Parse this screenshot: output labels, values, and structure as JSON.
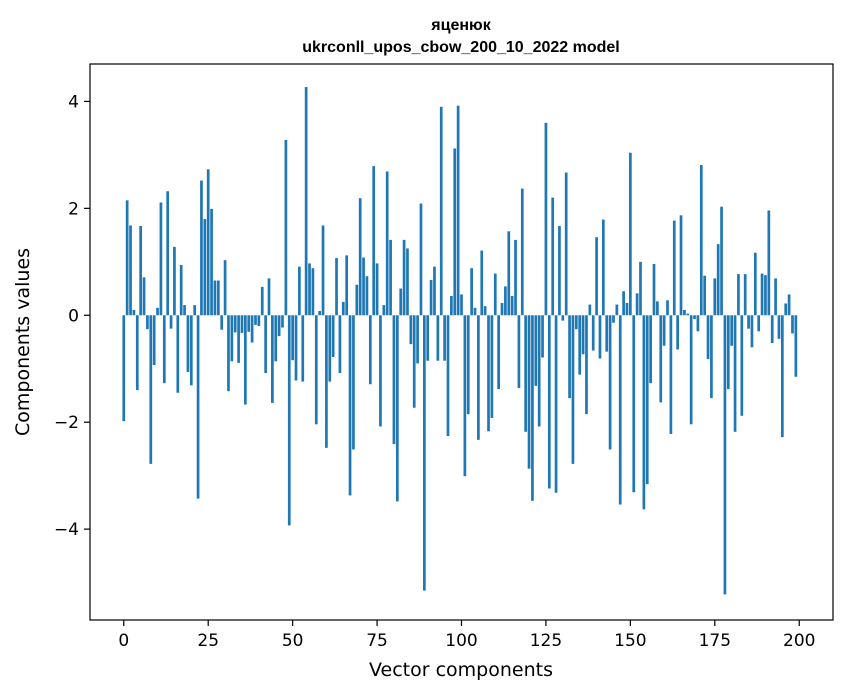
{
  "chart_data": {
    "type": "bar",
    "title": "яценюк",
    "subtitle": "ukrconll_upos_cbow_200_10_2022 model",
    "xlabel": "Vector components",
    "ylabel": "Components values",
    "xlim": [
      -10,
      210
    ],
    "ylim": [
      -5.7,
      4.7
    ],
    "xticks": [
      0,
      25,
      50,
      75,
      100,
      125,
      150,
      175,
      200
    ],
    "xtick_labels": [
      "0",
      "25",
      "50",
      "75",
      "100",
      "125",
      "150",
      "175",
      "200"
    ],
    "yticks": [
      -4,
      -2,
      0,
      2,
      4
    ],
    "ytick_labels": [
      "−4",
      "−2",
      "0",
      "2",
      "4"
    ],
    "bar_color": "#1f77b4",
    "grid": false,
    "x": [
      0,
      1,
      2,
      3,
      4,
      5,
      6,
      7,
      8,
      9,
      10,
      11,
      12,
      13,
      14,
      15,
      16,
      17,
      18,
      19,
      20,
      21,
      22,
      23,
      24,
      25,
      26,
      27,
      28,
      29,
      30,
      31,
      32,
      33,
      34,
      35,
      36,
      37,
      38,
      39,
      40,
      41,
      42,
      43,
      44,
      45,
      46,
      47,
      48,
      49,
      50,
      51,
      52,
      53,
      54,
      55,
      56,
      57,
      58,
      59,
      60,
      61,
      62,
      63,
      64,
      65,
      66,
      67,
      68,
      69,
      70,
      71,
      72,
      73,
      74,
      75,
      76,
      77,
      78,
      79,
      80,
      81,
      82,
      83,
      84,
      85,
      86,
      87,
      88,
      89,
      90,
      91,
      92,
      93,
      94,
      95,
      96,
      97,
      98,
      99,
      100,
      101,
      102,
      103,
      104,
      105,
      106,
      107,
      108,
      109,
      110,
      111,
      112,
      113,
      114,
      115,
      116,
      117,
      118,
      119,
      120,
      121,
      122,
      123,
      124,
      125,
      126,
      127,
      128,
      129,
      130,
      131,
      132,
      133,
      134,
      135,
      136,
      137,
      138,
      139,
      140,
      141,
      142,
      143,
      144,
      145,
      146,
      147,
      148,
      149,
      150,
      151,
      152,
      153,
      154,
      155,
      156,
      157,
      158,
      159,
      160,
      161,
      162,
      163,
      164,
      165,
      166,
      167,
      168,
      169,
      170,
      171,
      172,
      173,
      174,
      175,
      176,
      177,
      178,
      179,
      180,
      181,
      182,
      183,
      184,
      185,
      186,
      187,
      188,
      189,
      190,
      191,
      192,
      193,
      194,
      195,
      196,
      197,
      198,
      199
    ],
    "values": [
      -1.98,
      2.15,
      1.68,
      0.1,
      -1.4,
      1.67,
      0.71,
      -0.26,
      -2.78,
      -0.93,
      0.14,
      2.11,
      -1.27,
      2.32,
      -0.25,
      1.28,
      -1.45,
      0.94,
      0.19,
      -1.06,
      -1.31,
      0.19,
      -3.43,
      2.52,
      1.8,
      2.73,
      1.99,
      0.65,
      0.65,
      -0.27,
      1.03,
      -1.42,
      -0.86,
      -0.32,
      -0.89,
      -0.33,
      -1.67,
      -0.31,
      -0.51,
      -0.18,
      -0.2,
      0.53,
      -1.08,
      0.69,
      -1.64,
      -0.86,
      -0.39,
      -0.23,
      3.28,
      -3.93,
      -0.84,
      -1.22,
      0.91,
      -1.24,
      4.27,
      0.97,
      0.88,
      -2.04,
      0.08,
      1.68,
      -2.48,
      -1.24,
      -0.78,
      1.07,
      -1.08,
      0.25,
      1.12,
      -3.37,
      -2.51,
      0.57,
      2.19,
      1.08,
      0.73,
      -1.29,
      2.79,
      0.97,
      -2.08,
      0.19,
      2.69,
      1.41,
      -2.41,
      -3.48,
      0.5,
      1.41,
      1.25,
      -0.54,
      -1.73,
      -0.9,
      2.09,
      -5.15,
      -0.85,
      0.66,
      0.91,
      -0.85,
      3.9,
      -0.85,
      -2.26,
      0.36,
      3.12,
      3.92,
      0.39,
      -3.01,
      -1.85,
      0.88,
      0.14,
      -2.33,
      1.21,
      0.17,
      -2.17,
      -1.92,
      0.78,
      -1.38,
      0.23,
      0.54,
      1.57,
      0.36,
      1.41,
      -1.36,
      2.37,
      -2.18,
      -2.87,
      -3.47,
      -1.32,
      -2.08,
      -0.79,
      3.6,
      -3.24,
      2.2,
      -3.32,
      1.67,
      -0.1,
      2.67,
      -1.55,
      -2.78,
      -0.26,
      -1.11,
      -0.73,
      -1.85,
      0.2,
      -0.66,
      1.46,
      -0.81,
      1.79,
      -0.68,
      -2.51,
      -0.14,
      0.2,
      -3.54,
      0.45,
      0.23,
      3.04,
      -3.31,
      0.41,
      1.0,
      -3.63,
      -3.16,
      -1.27,
      0.96,
      0.26,
      -1.63,
      -0.57,
      0.28,
      -2.22,
      1.77,
      -0.64,
      1.87,
      0.1,
      0.03,
      -2.04,
      -0.07,
      -0.3,
      2.81,
      0.74,
      -0.82,
      -1.55,
      0.69,
      1.33,
      2.03,
      -5.22,
      -1.38,
      -0.57,
      -2.18,
      0.77,
      -1.88,
      0.77,
      -0.25,
      -0.6,
      1.17,
      -0.3,
      0.78,
      0.75,
      1.96,
      -0.52,
      0.69,
      -0.44,
      -2.28,
      0.22,
      0.39,
      -0.34,
      -1.15
    ]
  }
}
